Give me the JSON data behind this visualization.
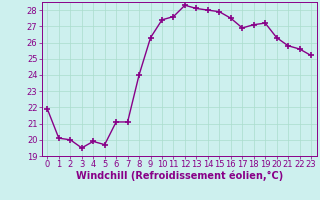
{
  "x": [
    0,
    1,
    2,
    3,
    4,
    5,
    6,
    7,
    8,
    9,
    10,
    11,
    12,
    13,
    14,
    15,
    16,
    17,
    18,
    19,
    20,
    21,
    22,
    23
  ],
  "y": [
    21.9,
    20.1,
    20.0,
    19.5,
    19.9,
    19.7,
    21.1,
    21.1,
    24.0,
    26.3,
    27.4,
    27.6,
    28.3,
    28.1,
    28.0,
    27.9,
    27.5,
    26.9,
    27.1,
    27.2,
    26.3,
    25.8,
    25.6,
    25.2
  ],
  "line_color": "#880088",
  "marker": "+",
  "marker_size": 5,
  "marker_lw": 1.2,
  "bg_color": "#cdf0ee",
  "grid_color": "#aaddcc",
  "xlabel": "Windchill (Refroidissement éolien,°C)",
  "ylabel": "",
  "ylim": [
    19,
    28.5
  ],
  "xlim": [
    -0.5,
    23.5
  ],
  "yticks": [
    19,
    20,
    21,
    22,
    23,
    24,
    25,
    26,
    27,
    28
  ],
  "xticks": [
    0,
    1,
    2,
    3,
    4,
    5,
    6,
    7,
    8,
    9,
    10,
    11,
    12,
    13,
    14,
    15,
    16,
    17,
    18,
    19,
    20,
    21,
    22,
    23
  ],
  "tick_fontsize": 6.0,
  "xlabel_fontsize": 7.0,
  "line_width": 1.0
}
